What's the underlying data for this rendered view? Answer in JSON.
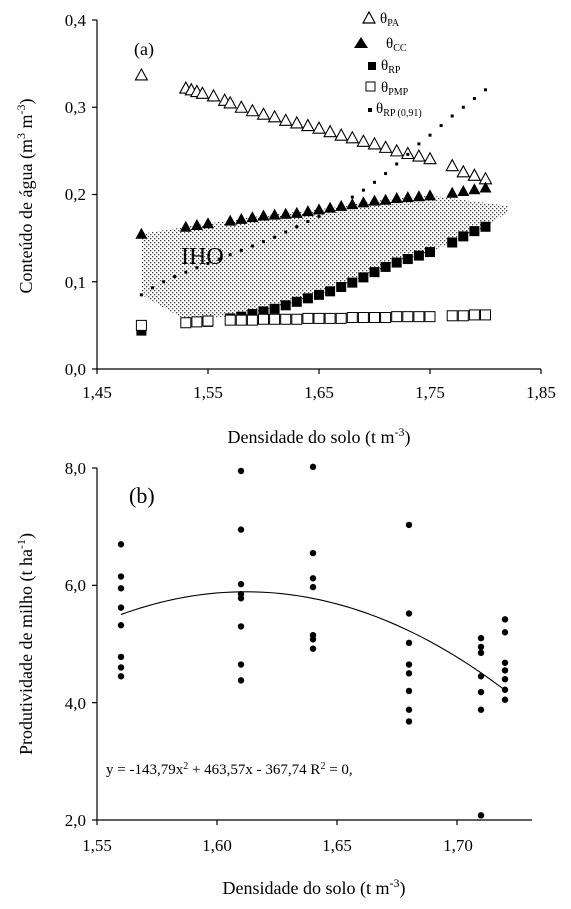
{
  "chart_data": [
    {
      "type": "scatter",
      "panel_label": "(a)",
      "xlabel": "Densidade do solo (t m-3)",
      "ylabel": "Conteúdo de água (m3 m-3)",
      "xlim": [
        1.45,
        1.85
      ],
      "ylim": [
        0.0,
        0.4
      ],
      "xticks": [
        "1,45",
        "1,55",
        "1,65",
        "1,75",
        "1,85"
      ],
      "yticks": [
        "0,0",
        "0,1",
        "0,2",
        "0,3",
        "0,4"
      ],
      "region_label": "IHO",
      "legend_position": "top-right",
      "series": [
        {
          "name": "θPA",
          "marker": "open-triangle",
          "points": [
            [
              1.49,
              0.337
            ],
            [
              1.53,
              0.322
            ],
            [
              1.535,
              0.32
            ],
            [
              1.54,
              0.318
            ],
            [
              1.545,
              0.316
            ],
            [
              1.555,
              0.313
            ],
            [
              1.565,
              0.308
            ],
            [
              1.57,
              0.305
            ],
            [
              1.58,
              0.3
            ],
            [
              1.59,
              0.296
            ],
            [
              1.6,
              0.292
            ],
            [
              1.61,
              0.289
            ],
            [
              1.62,
              0.285
            ],
            [
              1.63,
              0.282
            ],
            [
              1.64,
              0.279
            ],
            [
              1.65,
              0.276
            ],
            [
              1.66,
              0.272
            ],
            [
              1.67,
              0.268
            ],
            [
              1.68,
              0.265
            ],
            [
              1.69,
              0.261
            ],
            [
              1.7,
              0.258
            ],
            [
              1.71,
              0.254
            ],
            [
              1.72,
              0.25
            ],
            [
              1.73,
              0.247
            ],
            [
              1.74,
              0.244
            ],
            [
              1.75,
              0.241
            ],
            [
              1.77,
              0.233
            ],
            [
              1.78,
              0.226
            ],
            [
              1.79,
              0.222
            ],
            [
              1.8,
              0.218
            ]
          ]
        },
        {
          "name": "θCC",
          "marker": "filled-triangle",
          "points": [
            [
              1.49,
              0.155
            ],
            [
              1.53,
              0.163
            ],
            [
              1.54,
              0.165
            ],
            [
              1.55,
              0.167
            ],
            [
              1.57,
              0.17
            ],
            [
              1.58,
              0.172
            ],
            [
              1.59,
              0.174
            ],
            [
              1.6,
              0.176
            ],
            [
              1.61,
              0.177
            ],
            [
              1.62,
              0.178
            ],
            [
              1.63,
              0.179
            ],
            [
              1.64,
              0.181
            ],
            [
              1.65,
              0.183
            ],
            [
              1.66,
              0.185
            ],
            [
              1.67,
              0.187
            ],
            [
              1.68,
              0.189
            ],
            [
              1.69,
              0.191
            ],
            [
              1.7,
              0.193
            ],
            [
              1.71,
              0.194
            ],
            [
              1.72,
              0.196
            ],
            [
              1.73,
              0.197
            ],
            [
              1.74,
              0.198
            ],
            [
              1.75,
              0.199
            ],
            [
              1.77,
              0.202
            ],
            [
              1.78,
              0.204
            ],
            [
              1.79,
              0.206
            ],
            [
              1.8,
              0.208
            ]
          ]
        },
        {
          "name": "θRP",
          "marker": "filled-square",
          "points": [
            [
              1.49,
              0.044
            ],
            [
              1.55,
              0.054
            ],
            [
              1.57,
              0.058
            ],
            [
              1.58,
              0.06
            ],
            [
              1.59,
              0.063
            ],
            [
              1.6,
              0.066
            ],
            [
              1.61,
              0.069
            ],
            [
              1.62,
              0.073
            ],
            [
              1.63,
              0.077
            ],
            [
              1.64,
              0.081
            ],
            [
              1.65,
              0.085
            ],
            [
              1.66,
              0.089
            ],
            [
              1.67,
              0.094
            ],
            [
              1.68,
              0.099
            ],
            [
              1.69,
              0.105
            ],
            [
              1.7,
              0.111
            ],
            [
              1.71,
              0.117
            ],
            [
              1.72,
              0.122
            ],
            [
              1.73,
              0.126
            ],
            [
              1.74,
              0.13
            ],
            [
              1.75,
              0.134
            ],
            [
              1.77,
              0.145
            ],
            [
              1.78,
              0.152
            ],
            [
              1.79,
              0.158
            ],
            [
              1.8,
              0.163
            ]
          ]
        },
        {
          "name": "θPMP",
          "marker": "open-square",
          "points": [
            [
              1.49,
              0.05
            ],
            [
              1.53,
              0.053
            ],
            [
              1.54,
              0.054
            ],
            [
              1.55,
              0.055
            ],
            [
              1.57,
              0.056
            ],
            [
              1.58,
              0.056
            ],
            [
              1.59,
              0.056
            ],
            [
              1.6,
              0.057
            ],
            [
              1.61,
              0.057
            ],
            [
              1.62,
              0.057
            ],
            [
              1.63,
              0.057
            ],
            [
              1.64,
              0.058
            ],
            [
              1.65,
              0.058
            ],
            [
              1.66,
              0.058
            ],
            [
              1.67,
              0.058
            ],
            [
              1.68,
              0.059
            ],
            [
              1.69,
              0.059
            ],
            [
              1.7,
              0.059
            ],
            [
              1.71,
              0.059
            ],
            [
              1.72,
              0.06
            ],
            [
              1.73,
              0.06
            ],
            [
              1.74,
              0.06
            ],
            [
              1.75,
              0.06
            ],
            [
              1.77,
              0.061
            ],
            [
              1.78,
              0.061
            ],
            [
              1.79,
              0.062
            ],
            [
              1.8,
              0.062
            ]
          ]
        },
        {
          "name": "θRP (0,91)",
          "marker": "small-dot",
          "points": [
            [
              1.49,
              0.085
            ],
            [
              1.5,
              0.093
            ],
            [
              1.51,
              0.1
            ],
            [
              1.52,
              0.106
            ],
            [
              1.53,
              0.111
            ],
            [
              1.54,
              0.116
            ],
            [
              1.55,
              0.121
            ],
            [
              1.56,
              0.126
            ],
            [
              1.57,
              0.131
            ],
            [
              1.58,
              0.136
            ],
            [
              1.59,
              0.141
            ],
            [
              1.6,
              0.146
            ],
            [
              1.61,
              0.151
            ],
            [
              1.62,
              0.157
            ],
            [
              1.63,
              0.163
            ],
            [
              1.64,
              0.169
            ],
            [
              1.65,
              0.175
            ],
            [
              1.66,
              0.182
            ],
            [
              1.67,
              0.189
            ],
            [
              1.68,
              0.197
            ],
            [
              1.69,
              0.205
            ],
            [
              1.7,
              0.214
            ],
            [
              1.71,
              0.224
            ],
            [
              1.72,
              0.235
            ],
            [
              1.73,
              0.246
            ],
            [
              1.74,
              0.258
            ],
            [
              1.75,
              0.268
            ],
            [
              1.76,
              0.279
            ],
            [
              1.77,
              0.29
            ],
            [
              1.78,
              0.3
            ],
            [
              1.79,
              0.31
            ],
            [
              1.8,
              0.32
            ]
          ]
        }
      ],
      "iho_region": {
        "upper": [
          [
            1.49,
            0.155
          ],
          [
            1.53,
            0.163
          ],
          [
            1.6,
            0.176
          ],
          [
            1.65,
            0.183
          ],
          [
            1.7,
            0.193
          ],
          [
            1.75,
            0.199
          ],
          [
            1.82,
            0.187
          ]
        ],
        "lower": [
          [
            1.49,
            0.085
          ],
          [
            1.53,
            0.056
          ],
          [
            1.6,
            0.064
          ],
          [
            1.65,
            0.085
          ],
          [
            1.7,
            0.111
          ],
          [
            1.75,
            0.134
          ],
          [
            1.8,
            0.163
          ],
          [
            1.82,
            0.18
          ]
        ]
      }
    },
    {
      "type": "scatter",
      "panel_label": "(b)",
      "xlabel": "Densidade do solo (t m-3)",
      "ylabel": "Produtividade de milho (t ha-1)",
      "xlim": [
        1.55,
        1.73
      ],
      "ylim": [
        2.0,
        8.0
      ],
      "xticks": [
        "1,55",
        "1,60",
        "1,65",
        "1,70"
      ],
      "yticks": [
        "2,0",
        "4,0",
        "6,0",
        "8,0"
      ],
      "equation": "y = -143,79x2 + 463,57x - 367,74  R2 = 0,",
      "points": [
        [
          1.56,
          6.7
        ],
        [
          1.56,
          6.15
        ],
        [
          1.56,
          5.95
        ],
        [
          1.56,
          5.62
        ],
        [
          1.56,
          5.32
        ],
        [
          1.56,
          4.78
        ],
        [
          1.56,
          4.6
        ],
        [
          1.56,
          4.45
        ],
        [
          1.61,
          7.95
        ],
        [
          1.61,
          6.95
        ],
        [
          1.61,
          6.02
        ],
        [
          1.61,
          5.85
        ],
        [
          1.61,
          5.78
        ],
        [
          1.61,
          5.3
        ],
        [
          1.61,
          4.65
        ],
        [
          1.61,
          4.38
        ],
        [
          1.64,
          8.02
        ],
        [
          1.64,
          6.55
        ],
        [
          1.64,
          6.12
        ],
        [
          1.64,
          5.97
        ],
        [
          1.64,
          5.15
        ],
        [
          1.64,
          5.08
        ],
        [
          1.64,
          4.92
        ],
        [
          1.68,
          7.03
        ],
        [
          1.68,
          5.52
        ],
        [
          1.68,
          5.02
        ],
        [
          1.68,
          4.65
        ],
        [
          1.68,
          4.5
        ],
        [
          1.68,
          4.2
        ],
        [
          1.68,
          3.88
        ],
        [
          1.68,
          3.68
        ],
        [
          1.71,
          5.1
        ],
        [
          1.71,
          4.95
        ],
        [
          1.71,
          4.85
        ],
        [
          1.71,
          4.45
        ],
        [
          1.71,
          4.18
        ],
        [
          1.71,
          3.88
        ],
        [
          1.71,
          2.08
        ],
        [
          1.72,
          5.42
        ],
        [
          1.72,
          5.2
        ],
        [
          1.72,
          4.68
        ],
        [
          1.72,
          4.55
        ],
        [
          1.72,
          4.4
        ],
        [
          1.72,
          4.22
        ],
        [
          1.72,
          4.05
        ]
      ],
      "fit": {
        "a": -143.79,
        "b": 463.57,
        "c": -367.74,
        "x_from": 1.56,
        "x_to": 1.72
      }
    }
  ]
}
